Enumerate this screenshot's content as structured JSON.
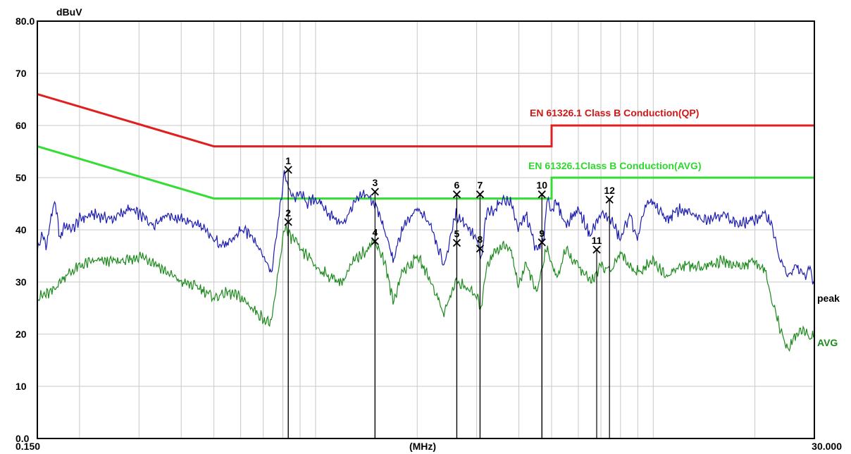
{
  "chart_data": {
    "type": "line",
    "xlabel": "(MHz)",
    "ylabel": "dBuV",
    "x_scale": "log",
    "xlim": [
      0.15,
      30
    ],
    "ylim": [
      0,
      80
    ],
    "grid": true,
    "x_tick_labels": [
      "0.150",
      "30.000"
    ],
    "y_tick_labels": [
      "0.0",
      "10",
      "20",
      "30",
      "40",
      "50",
      "60",
      "70",
      "80.0"
    ],
    "y_ticks": [
      0,
      10,
      20,
      30,
      40,
      50,
      60,
      70,
      80
    ],
    "colors": {
      "grid": "#c8c8c8",
      "limit_qp": "#e02020",
      "limit_avg": "#33dd33",
      "peak": "#1c1cb0",
      "avg": "#1d8a1d",
      "marker": "#000000"
    },
    "limit_lines": [
      {
        "name": "EN 61326.1 Class B Conduction(QP)",
        "color": "#e02020",
        "x": [
          0.15,
          0.5,
          5.0,
          5.0,
          30
        ],
        "y": [
          66,
          56,
          56,
          60,
          60
        ]
      },
      {
        "name": "EN 61326.1Class B Conduction(AVG)",
        "color": "#33dd33",
        "x": [
          0.15,
          0.5,
          5.0,
          5.0,
          30
        ],
        "y": [
          56,
          46,
          46,
          50,
          50
        ]
      }
    ],
    "series": [
      {
        "name": "peak",
        "color": "#1c1cb0",
        "x": [
          0.15,
          0.155,
          0.16,
          0.165,
          0.17,
          0.175,
          0.18,
          0.19,
          0.2,
          0.22,
          0.25,
          0.28,
          0.3,
          0.33,
          0.36,
          0.4,
          0.45,
          0.5,
          0.55,
          0.6,
          0.65,
          0.7,
          0.74,
          0.78,
          0.81,
          0.83,
          0.87,
          0.9,
          0.95,
          1.0,
          1.1,
          1.2,
          1.3,
          1.4,
          1.5,
          1.6,
          1.7,
          1.8,
          1.9,
          2.0,
          2.2,
          2.4,
          2.6,
          2.8,
          3.0,
          3.1,
          3.2,
          3.4,
          3.6,
          3.8,
          4.0,
          4.2,
          4.5,
          4.75,
          4.85,
          4.95,
          5.2,
          5.5,
          6.0,
          6.5,
          7.0,
          7.5,
          8.0,
          8.5,
          9.0,
          9.5,
          10.0,
          11.0,
          12.0,
          14.0,
          16.0,
          18.0,
          20.0,
          21.5,
          22.5,
          23.5,
          25.0,
          26.5,
          28.0,
          29.0,
          30.0
        ],
        "y": [
          36,
          39,
          37,
          43,
          45,
          38,
          41,
          40,
          42,
          43,
          42,
          44,
          43,
          41,
          43,
          42,
          41,
          38,
          37,
          40,
          39,
          35,
          32,
          43,
          51,
          48,
          46,
          47,
          45,
          46,
          43,
          41,
          45,
          47,
          45,
          40,
          34,
          40,
          42,
          44,
          41,
          33,
          43,
          41,
          38,
          34,
          43,
          44,
          46,
          45,
          40,
          43,
          36,
          38,
          47,
          44,
          45,
          41,
          44,
          39,
          43,
          42,
          38,
          43,
          38,
          45,
          45,
          42,
          44,
          42,
          43,
          41,
          42,
          43,
          41,
          35,
          31,
          33,
          31,
          33,
          29
        ]
      },
      {
        "name": "AVG",
        "color": "#1d8a1d",
        "x": [
          0.15,
          0.165,
          0.18,
          0.2,
          0.22,
          0.25,
          0.28,
          0.3,
          0.33,
          0.36,
          0.4,
          0.45,
          0.5,
          0.55,
          0.6,
          0.65,
          0.7,
          0.74,
          0.78,
          0.81,
          0.83,
          0.87,
          0.9,
          0.95,
          1.0,
          1.1,
          1.2,
          1.3,
          1.4,
          1.5,
          1.6,
          1.7,
          1.8,
          1.9,
          2.0,
          2.2,
          2.4,
          2.6,
          2.8,
          3.0,
          3.1,
          3.2,
          3.4,
          3.6,
          3.8,
          4.0,
          4.2,
          4.5,
          4.75,
          4.85,
          4.95,
          5.2,
          5.5,
          6.0,
          6.5,
          7.0,
          7.5,
          8.0,
          8.5,
          9.0,
          9.5,
          10.0,
          11.0,
          12.0,
          14.0,
          16.0,
          18.0,
          20.0,
          21.5,
          22.5,
          23.5,
          25.0,
          26.5,
          28.0,
          29.0,
          30.0
        ],
        "y": [
          27,
          28,
          31,
          33,
          34,
          34,
          34,
          35,
          34,
          32,
          30,
          29,
          27,
          28,
          27,
          25,
          23,
          22,
          33,
          41,
          39,
          38,
          36,
          35,
          33,
          31,
          30,
          34,
          36,
          38,
          34,
          26,
          32,
          33,
          35,
          30,
          24,
          30,
          29,
          27,
          25,
          33,
          36,
          37,
          36,
          29,
          34,
          28,
          34,
          37,
          34,
          31,
          36,
          33,
          30,
          33,
          32,
          36,
          33,
          32,
          33,
          34,
          31,
          33,
          33,
          34,
          33,
          34,
          32,
          26,
          22,
          17,
          20,
          21,
          19,
          20
        ]
      }
    ],
    "markers": [
      {
        "label": "1",
        "x": 0.83,
        "y": 51.5
      },
      {
        "label": "2",
        "x": 0.83,
        "y": 41.5
      },
      {
        "label": "3",
        "x": 1.5,
        "y": 47.3
      },
      {
        "label": "4",
        "x": 1.5,
        "y": 37.8
      },
      {
        "label": "5",
        "x": 2.62,
        "y": 37.5
      },
      {
        "label": "6",
        "x": 2.62,
        "y": 46.8
      },
      {
        "label": "7",
        "x": 3.07,
        "y": 46.8
      },
      {
        "label": "8",
        "x": 3.07,
        "y": 36.4
      },
      {
        "label": "9",
        "x": 4.68,
        "y": 37.6
      },
      {
        "label": "10",
        "x": 4.68,
        "y": 46.8
      },
      {
        "label": "11",
        "x": 6.8,
        "y": 36.2
      },
      {
        "label": "12",
        "x": 7.42,
        "y": 45.8
      }
    ]
  }
}
